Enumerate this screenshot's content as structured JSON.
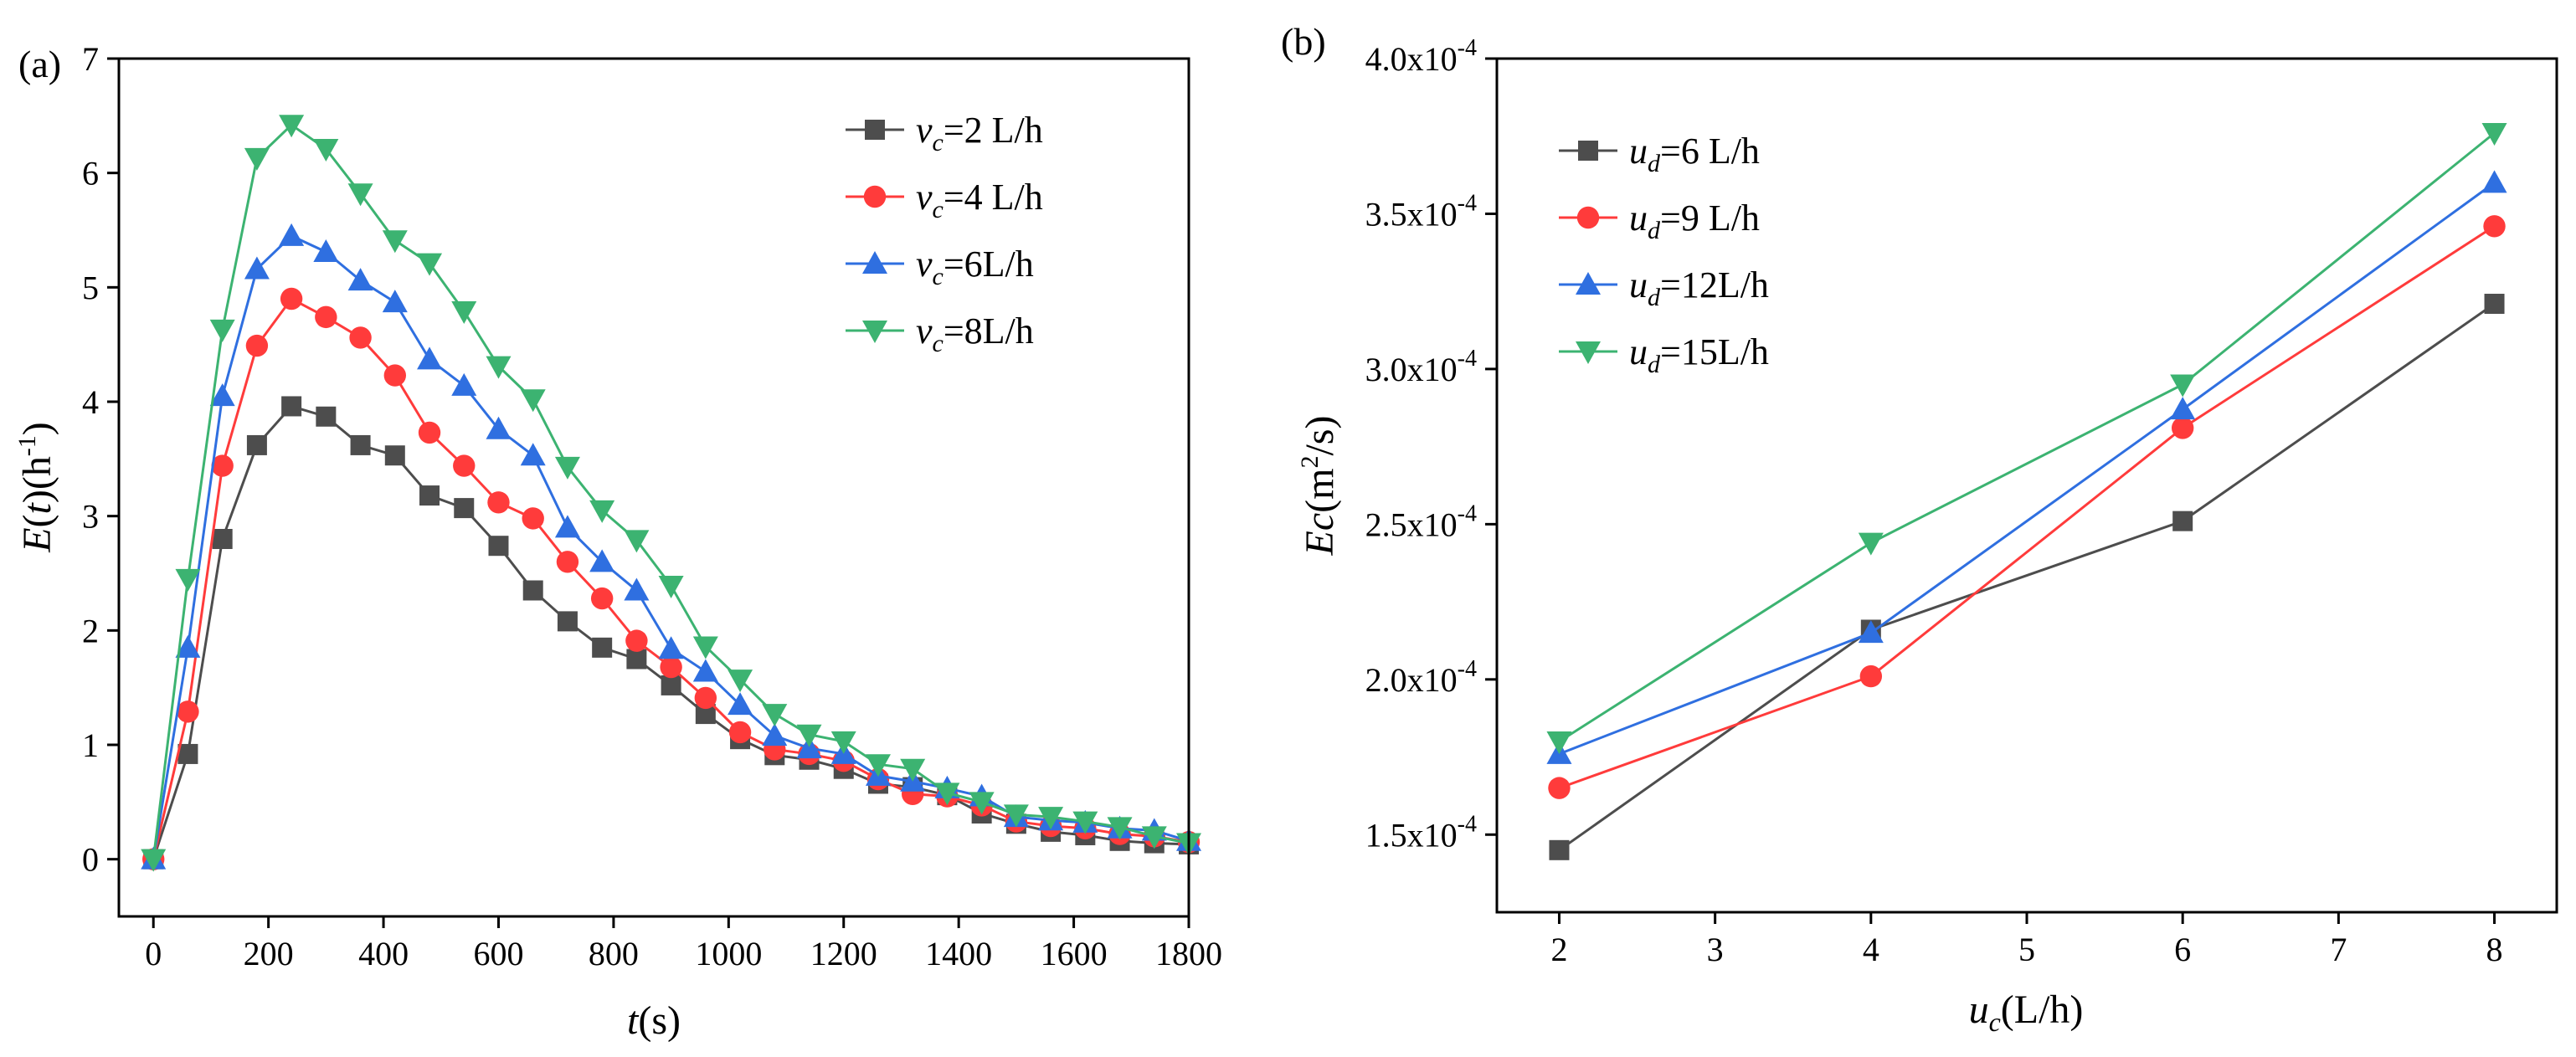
{
  "chart_data": [
    {
      "type": "line",
      "panel_label": "(a)",
      "xlabel_var": "t",
      "xlabel_unit": "(s)",
      "ylabel_var": "E",
      "ylabel_open": "(",
      "ylabel_arg": "t",
      "ylabel_close": ")(h",
      "ylabel_exp": "-1",
      "ylabel_end": ")",
      "xlim": [
        -60,
        1800
      ],
      "ylim": [
        -0.5,
        7
      ],
      "xticks": [
        0,
        200,
        400,
        600,
        800,
        1000,
        1200,
        1400,
        1600,
        1800
      ],
      "yticks": [
        0,
        1,
        2,
        3,
        4,
        5,
        6,
        7
      ],
      "x": [
        0,
        60,
        120,
        180,
        240,
        300,
        360,
        420,
        480,
        540,
        600,
        660,
        720,
        780,
        840,
        900,
        960,
        1020,
        1080,
        1140,
        1200,
        1260,
        1320,
        1380,
        1440,
        1500,
        1560,
        1620,
        1680,
        1740,
        1800
      ],
      "series": [
        {
          "name_var": "v",
          "name_sub": "c",
          "name_rest": "=2 L/h",
          "color": "#4d4d4d",
          "marker": "square",
          "values": [
            0,
            0.92,
            2.8,
            3.62,
            3.96,
            3.87,
            3.62,
            3.53,
            3.18,
            3.07,
            2.74,
            2.35,
            2.08,
            1.85,
            1.75,
            1.52,
            1.27,
            1.05,
            0.91,
            0.87,
            0.79,
            0.66,
            0.63,
            0.56,
            0.4,
            0.31,
            0.24,
            0.21,
            0.16,
            0.14,
            0.13
          ]
        },
        {
          "name_var": "v",
          "name_sub": "c",
          "name_rest": "=4 L/h",
          "color": "#ff3b3b",
          "marker": "circle",
          "values": [
            0,
            1.29,
            3.44,
            4.49,
            4.9,
            4.74,
            4.56,
            4.23,
            3.73,
            3.44,
            3.12,
            2.98,
            2.6,
            2.28,
            1.91,
            1.68,
            1.41,
            1.11,
            0.96,
            0.92,
            0.86,
            0.7,
            0.57,
            0.55,
            0.47,
            0.33,
            0.29,
            0.27,
            0.22,
            0.2,
            0.15
          ]
        },
        {
          "name_var": "v",
          "name_sub": "c",
          "name_rest": "=6L/h",
          "color": "#2f6fe0",
          "marker": "triangle-up",
          "values": [
            0,
            1.85,
            4.05,
            5.16,
            5.45,
            5.31,
            5.06,
            4.87,
            4.37,
            4.14,
            3.76,
            3.53,
            2.9,
            2.6,
            2.35,
            1.84,
            1.64,
            1.35,
            1.08,
            0.97,
            0.92,
            0.73,
            0.68,
            0.62,
            0.55,
            0.37,
            0.34,
            0.32,
            0.27,
            0.25,
            0.16
          ]
        },
        {
          "name_var": "v",
          "name_sub": "c",
          "name_rest": "=8L/h",
          "color": "#3cb371",
          "marker": "triangle-down",
          "values": [
            0,
            2.45,
            4.63,
            6.13,
            6.42,
            6.21,
            5.82,
            5.41,
            5.21,
            4.79,
            4.31,
            4.02,
            3.43,
            3.05,
            2.79,
            2.39,
            1.86,
            1.57,
            1.27,
            1.09,
            1.03,
            0.83,
            0.79,
            0.58,
            0.5,
            0.39,
            0.37,
            0.33,
            0.28,
            0.2,
            0.14
          ]
        }
      ]
    },
    {
      "type": "line",
      "panel_label": "(b)",
      "xlabel_var": "u",
      "xlabel_sub": "c",
      "xlabel_unit": "(L/h)",
      "ylabel_var": "Ec",
      "ylabel_unit_a": "(m",
      "ylabel_unit_sup": "2",
      "ylabel_unit_b": "/s)",
      "xlim": [
        1.6,
        8.4
      ],
      "ylim": [
        0.000125,
        0.0004
      ],
      "xticks": [
        2,
        3,
        4,
        5,
        6,
        7,
        8
      ],
      "yticks": [
        {
          "value": 0.00015,
          "mantissa": "1.5x10",
          "exp": "-4"
        },
        {
          "value": 0.0002,
          "mantissa": "2.0x10",
          "exp": "-4"
        },
        {
          "value": 0.00025,
          "mantissa": "2.5x10",
          "exp": "-4"
        },
        {
          "value": 0.0003,
          "mantissa": "3.0x10",
          "exp": "-4"
        },
        {
          "value": 0.00035,
          "mantissa": "3.5x10",
          "exp": "-4"
        },
        {
          "value": 0.0004,
          "mantissa": "4.0x10",
          "exp": "-4"
        }
      ],
      "x": [
        2,
        4,
        6,
        8
      ],
      "series": [
        {
          "name_var": "u",
          "name_sub": "d",
          "name_rest": "=6 L/h",
          "color": "#4d4d4d",
          "marker": "square",
          "values": [
            0.000145,
            0.000216,
            0.000251,
            0.000321
          ]
        },
        {
          "name_var": "u",
          "name_sub": "d",
          "name_rest": "=9 L/h",
          "color": "#ff3b3b",
          "marker": "circle",
          "values": [
            0.000165,
            0.000201,
            0.000281,
            0.000346
          ]
        },
        {
          "name_var": "u",
          "name_sub": "d",
          "name_rest": "=12L/h",
          "color": "#2f6fe0",
          "marker": "triangle-up",
          "values": [
            0.000176,
            0.000215,
            0.000287,
            0.00036
          ]
        },
        {
          "name_var": "u",
          "name_sub": "d",
          "name_rest": "=15L/h",
          "color": "#3cb371",
          "marker": "triangle-down",
          "values": [
            0.00018,
            0.000244,
            0.000295,
            0.000376
          ]
        }
      ]
    }
  ]
}
